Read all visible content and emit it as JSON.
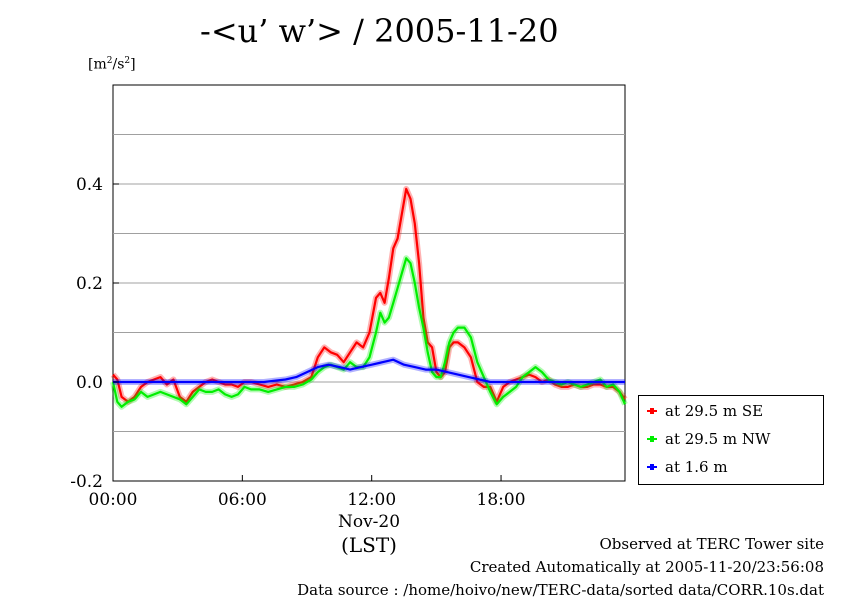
{
  "title": "-<u’ w’> / 2005-11-20",
  "unit_label_main": "[m",
  "unit_label_sup1": "2",
  "unit_label_mid": "/s",
  "unit_label_sup2": "2",
  "unit_label_end": "]",
  "date_label": "Nov-20",
  "xaxis_label": "(LST)",
  "footer": {
    "line1": "Observed at TERC Tower site",
    "line2": "Created Automatically at 2005-11-20/23:56:08",
    "line3": "Data source : /home/hoivo/new/TERC-data/sorted  data/CORR.10s.dat"
  },
  "legend": [
    {
      "label": "at 29.5 m SE",
      "color": "#ff0000"
    },
    {
      "label": "at 29.5 m NW",
      "color": "#00ee00"
    },
    {
      "label": "at 1.6 m",
      "color": "#0000ff"
    }
  ],
  "chart_data": {
    "type": "line",
    "title": "-<u’ w’> / 2005-11-20",
    "ylabel": "[m2/s2]",
    "xlabel": "(LST)",
    "xlim": [
      0,
      23.75
    ],
    "ylim": [
      -0.2,
      0.6
    ],
    "x_ticks": [
      0,
      6,
      12,
      18
    ],
    "x_tick_labels": [
      "00:00",
      "06:00",
      "12:00",
      "18:00"
    ],
    "y_ticks": [
      -0.2,
      0.0,
      0.2,
      0.4
    ],
    "y_tick_labels": [
      "-0.2",
      "0.0",
      "0.2",
      "0.4"
    ],
    "grid": "horizontal",
    "legend_position": "right, outside bottom",
    "series": [
      {
        "name": "at 29.5 m SE",
        "color": "#ff0000",
        "x": [
          0,
          0.2,
          0.4,
          0.7,
          1.0,
          1.3,
          1.6,
          1.9,
          2.2,
          2.5,
          2.8,
          3.1,
          3.4,
          3.7,
          4.0,
          4.3,
          4.6,
          4.9,
          5.2,
          5.5,
          5.8,
          6.1,
          6.4,
          6.8,
          7.2,
          7.6,
          8.0,
          8.4,
          8.8,
          9.2,
          9.5,
          9.8,
          10.1,
          10.4,
          10.7,
          11.0,
          11.3,
          11.6,
          11.9,
          12.2,
          12.4,
          12.6,
          12.8,
          13.0,
          13.2,
          13.4,
          13.6,
          13.8,
          14.0,
          14.2,
          14.4,
          14.6,
          14.8,
          15.0,
          15.2,
          15.4,
          15.6,
          15.8,
          16.0,
          16.3,
          16.6,
          16.9,
          17.2,
          17.5,
          17.8,
          18.1,
          18.4,
          18.7,
          19.0,
          19.3,
          19.6,
          19.9,
          20.2,
          20.5,
          20.8,
          21.1,
          21.4,
          21.7,
          22.0,
          22.3,
          22.6,
          22.9,
          23.2,
          23.5,
          23.75
        ],
        "y": [
          0.015,
          0.005,
          -0.03,
          -0.04,
          -0.03,
          -0.01,
          0.0,
          0.005,
          0.01,
          -0.005,
          0.005,
          -0.03,
          -0.04,
          -0.02,
          -0.01,
          0.0,
          0.005,
          0.0,
          -0.005,
          -0.005,
          -0.01,
          0.0,
          0.0,
          -0.005,
          -0.01,
          -0.005,
          -0.01,
          -0.005,
          0.0,
          0.01,
          0.05,
          0.07,
          0.06,
          0.055,
          0.04,
          0.06,
          0.08,
          0.07,
          0.1,
          0.17,
          0.18,
          0.16,
          0.21,
          0.27,
          0.29,
          0.34,
          0.39,
          0.37,
          0.32,
          0.24,
          0.13,
          0.08,
          0.07,
          0.02,
          0.01,
          0.02,
          0.07,
          0.08,
          0.08,
          0.07,
          0.05,
          0.0,
          -0.01,
          -0.01,
          -0.04,
          -0.01,
          0.0,
          0.005,
          0.01,
          0.015,
          0.01,
          0.0,
          0.005,
          -0.005,
          -0.01,
          -0.01,
          -0.005,
          -0.01,
          -0.01,
          -0.005,
          -0.005,
          -0.01,
          -0.01,
          -0.02,
          -0.035
        ]
      },
      {
        "name": "at 29.5 m NW",
        "color": "#00ee00",
        "x": [
          0,
          0.2,
          0.4,
          0.7,
          1.0,
          1.3,
          1.6,
          1.9,
          2.2,
          2.5,
          2.8,
          3.1,
          3.4,
          3.7,
          4.0,
          4.3,
          4.6,
          4.9,
          5.2,
          5.5,
          5.8,
          6.1,
          6.4,
          6.8,
          7.2,
          7.6,
          8.0,
          8.4,
          8.8,
          9.2,
          9.5,
          9.8,
          10.1,
          10.4,
          10.7,
          11.0,
          11.3,
          11.6,
          11.9,
          12.2,
          12.4,
          12.6,
          12.8,
          13.0,
          13.2,
          13.4,
          13.6,
          13.8,
          14.0,
          14.2,
          14.4,
          14.6,
          14.8,
          15.0,
          15.2,
          15.4,
          15.6,
          15.8,
          16.0,
          16.3,
          16.6,
          16.9,
          17.2,
          17.5,
          17.8,
          18.1,
          18.4,
          18.7,
          19.0,
          19.3,
          19.6,
          19.9,
          20.2,
          20.5,
          20.8,
          21.1,
          21.4,
          21.7,
          22.0,
          22.3,
          22.6,
          22.9,
          23.2,
          23.5,
          23.75
        ],
        "y": [
          0.0,
          -0.04,
          -0.05,
          -0.04,
          -0.035,
          -0.02,
          -0.03,
          -0.025,
          -0.02,
          -0.025,
          -0.03,
          -0.035,
          -0.045,
          -0.03,
          -0.015,
          -0.02,
          -0.02,
          -0.015,
          -0.025,
          -0.03,
          -0.025,
          -0.01,
          -0.015,
          -0.015,
          -0.02,
          -0.015,
          -0.01,
          -0.01,
          -0.005,
          0.005,
          0.02,
          0.03,
          0.035,
          0.03,
          0.025,
          0.04,
          0.03,
          0.03,
          0.05,
          0.1,
          0.14,
          0.12,
          0.13,
          0.16,
          0.19,
          0.22,
          0.25,
          0.24,
          0.2,
          0.15,
          0.11,
          0.06,
          0.02,
          0.01,
          0.01,
          0.04,
          0.08,
          0.1,
          0.11,
          0.11,
          0.09,
          0.04,
          0.01,
          -0.02,
          -0.045,
          -0.03,
          -0.02,
          -0.01,
          0.01,
          0.02,
          0.03,
          0.02,
          0.005,
          0.0,
          -0.005,
          0.0,
          -0.005,
          -0.01,
          -0.005,
          0.0,
          0.005,
          -0.01,
          -0.005,
          -0.02,
          -0.045
        ]
      },
      {
        "name": "at 1.6 m",
        "color": "#0000ff",
        "x": [
          0,
          1,
          2,
          3,
          4,
          5,
          6,
          7,
          8,
          8.5,
          9.0,
          9.5,
          10.0,
          10.5,
          11.0,
          11.5,
          12.0,
          12.5,
          13.0,
          13.5,
          14.0,
          14.5,
          15.0,
          15.5,
          16.0,
          16.5,
          17.0,
          17.5,
          18.0,
          19,
          20,
          21,
          22,
          23,
          23.75
        ],
        "y": [
          0.0,
          0.0,
          0.0,
          0.0,
          0.0,
          0.0,
          0.0,
          0.0,
          0.005,
          0.01,
          0.02,
          0.03,
          0.035,
          0.03,
          0.025,
          0.03,
          0.035,
          0.04,
          0.045,
          0.035,
          0.03,
          0.025,
          0.025,
          0.02,
          0.015,
          0.01,
          0.005,
          0.0,
          0.0,
          0.0,
          0.0,
          0.0,
          0.0,
          0.0,
          0.0
        ]
      }
    ]
  }
}
